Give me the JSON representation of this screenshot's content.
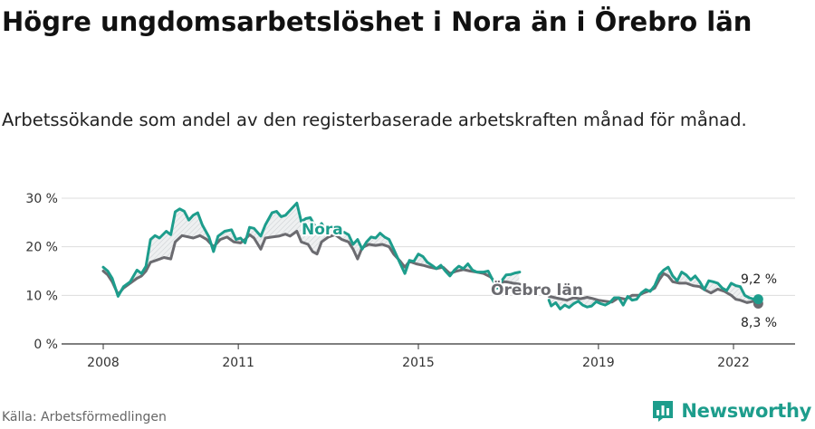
{
  "header": {
    "title": "Högre ungdomsarbetslöshet i Nora än i Örebro län",
    "subtitle": "Arbetssökande som andel av den registerbaserade arbetskraften månad för månad."
  },
  "footer": {
    "source": "Källa: Arbetsförmedlingen",
    "brand": "Newsworthy",
    "brand_icon": "bar-chart-logo-icon"
  },
  "chart_data": {
    "type": "line",
    "title": "Högre ungdomsarbetslöshet i Nora än i Örebro län",
    "subtitle": "Arbetssökande som andel av den registerbaserade arbetskraften månad för månad.",
    "ylim": [
      0,
      30
    ],
    "yticks": [
      0,
      10,
      20,
      30
    ],
    "ytick_labels": [
      "0 %",
      "10 %",
      "20 %",
      "30 %"
    ],
    "xlim": [
      2008.0,
      2023.0
    ],
    "xticks": [
      2008,
      2011,
      2015,
      2019,
      2022
    ],
    "xtick_labels": [
      "2008",
      "2011",
      "2015",
      "2019",
      "2022"
    ],
    "grid": true,
    "end_labels": [
      "9,2 %",
      "8,3 %"
    ],
    "series": [
      {
        "name": "Nora",
        "color": "#1d9d8c",
        "gap": [
          2017.25,
          2017.9
        ],
        "points": [
          [
            2008.0,
            15.8
          ],
          [
            2008.1,
            15.0
          ],
          [
            2008.2,
            13.5
          ],
          [
            2008.33,
            9.8
          ],
          [
            2008.45,
            11.8
          ],
          [
            2008.6,
            12.8
          ],
          [
            2008.75,
            15.2
          ],
          [
            2008.85,
            14.5
          ],
          [
            2008.95,
            16.0
          ],
          [
            2009.05,
            21.5
          ],
          [
            2009.15,
            22.3
          ],
          [
            2009.25,
            21.8
          ],
          [
            2009.4,
            23.2
          ],
          [
            2009.5,
            22.5
          ],
          [
            2009.6,
            27.2
          ],
          [
            2009.7,
            27.8
          ],
          [
            2009.8,
            27.3
          ],
          [
            2009.9,
            25.5
          ],
          [
            2010.0,
            26.5
          ],
          [
            2010.1,
            27.0
          ],
          [
            2010.2,
            24.5
          ],
          [
            2010.35,
            22.0
          ],
          [
            2010.45,
            19.0
          ],
          [
            2010.55,
            22.2
          ],
          [
            2010.7,
            23.2
          ],
          [
            2010.85,
            23.5
          ],
          [
            2010.95,
            21.5
          ],
          [
            2011.05,
            21.8
          ],
          [
            2011.15,
            20.8
          ],
          [
            2011.25,
            24.0
          ],
          [
            2011.35,
            23.8
          ],
          [
            2011.5,
            22.2
          ],
          [
            2011.6,
            24.5
          ],
          [
            2011.75,
            27.0
          ],
          [
            2011.85,
            27.3
          ],
          [
            2011.95,
            26.2
          ],
          [
            2012.05,
            26.5
          ],
          [
            2012.15,
            27.5
          ],
          [
            2012.3,
            29.0
          ],
          [
            2012.4,
            25.2
          ],
          [
            2012.5,
            25.8
          ],
          [
            2012.6,
            26.0
          ],
          [
            2012.75,
            23.5
          ],
          [
            2012.85,
            24.8
          ],
          [
            2012.95,
            23.2
          ],
          [
            2013.1,
            24.2
          ],
          [
            2013.2,
            22.8
          ],
          [
            2013.35,
            23.0
          ],
          [
            2013.45,
            22.5
          ],
          [
            2013.55,
            20.5
          ],
          [
            2013.65,
            21.5
          ],
          [
            2013.75,
            19.5
          ],
          [
            2013.85,
            21.0
          ],
          [
            2013.95,
            22.0
          ],
          [
            2014.05,
            21.8
          ],
          [
            2014.15,
            22.8
          ],
          [
            2014.25,
            22.0
          ],
          [
            2014.35,
            21.5
          ],
          [
            2014.45,
            19.5
          ],
          [
            2014.6,
            16.5
          ],
          [
            2014.7,
            14.5
          ],
          [
            2014.8,
            17.2
          ],
          [
            2014.9,
            17.0
          ],
          [
            2015.0,
            18.5
          ],
          [
            2015.1,
            18.0
          ],
          [
            2015.2,
            16.8
          ],
          [
            2015.3,
            16.2
          ],
          [
            2015.4,
            15.5
          ],
          [
            2015.5,
            16.2
          ],
          [
            2015.6,
            15.0
          ],
          [
            2015.7,
            14.0
          ],
          [
            2015.8,
            15.2
          ],
          [
            2015.9,
            16.0
          ],
          [
            2016.0,
            15.5
          ],
          [
            2016.1,
            16.5
          ],
          [
            2016.2,
            15.2
          ],
          [
            2016.3,
            14.8
          ],
          [
            2016.45,
            14.8
          ],
          [
            2016.55,
            15.0
          ],
          [
            2016.65,
            13.2
          ],
          [
            2016.75,
            11.5
          ],
          [
            2016.85,
            13.0
          ],
          [
            2016.95,
            14.2
          ],
          [
            2017.05,
            14.3
          ],
          [
            2017.15,
            14.6
          ],
          [
            2017.25,
            14.8
          ],
          [
            2017.9,
            9.0
          ],
          [
            2017.95,
            7.8
          ],
          [
            2018.05,
            8.5
          ],
          [
            2018.15,
            7.2
          ],
          [
            2018.25,
            8.0
          ],
          [
            2018.35,
            7.5
          ],
          [
            2018.45,
            8.3
          ],
          [
            2018.55,
            8.8
          ],
          [
            2018.65,
            8.0
          ],
          [
            2018.75,
            7.6
          ],
          [
            2018.85,
            7.8
          ],
          [
            2018.95,
            8.7
          ],
          [
            2019.05,
            8.3
          ],
          [
            2019.15,
            8.0
          ],
          [
            2019.25,
            8.5
          ],
          [
            2019.35,
            9.5
          ],
          [
            2019.45,
            9.5
          ],
          [
            2019.55,
            8.0
          ],
          [
            2019.65,
            9.8
          ],
          [
            2019.75,
            9.0
          ],
          [
            2019.85,
            9.2
          ],
          [
            2019.95,
            10.5
          ],
          [
            2020.05,
            11.2
          ],
          [
            2020.15,
            10.8
          ],
          [
            2020.25,
            12.0
          ],
          [
            2020.35,
            14.2
          ],
          [
            2020.45,
            15.2
          ],
          [
            2020.55,
            15.8
          ],
          [
            2020.65,
            14.0
          ],
          [
            2020.75,
            13.0
          ],
          [
            2020.85,
            14.8
          ],
          [
            2020.95,
            14.2
          ],
          [
            2021.05,
            13.2
          ],
          [
            2021.15,
            14.0
          ],
          [
            2021.25,
            12.8
          ],
          [
            2021.35,
            11.2
          ],
          [
            2021.45,
            13.0
          ],
          [
            2021.55,
            12.8
          ],
          [
            2021.65,
            12.5
          ],
          [
            2021.75,
            11.5
          ],
          [
            2021.85,
            11.0
          ],
          [
            2021.95,
            12.5
          ],
          [
            2022.05,
            12.0
          ],
          [
            2022.15,
            11.8
          ],
          [
            2022.25,
            10.0
          ],
          [
            2022.35,
            9.5
          ],
          [
            2022.45,
            9.2
          ],
          [
            2022.55,
            9.2
          ]
        ]
      },
      {
        "name": "Örebro län",
        "color": "#6b6b70",
        "gap": [
          2017.25,
          2017.9
        ],
        "points": [
          [
            2008.0,
            15.0
          ],
          [
            2008.1,
            14.2
          ],
          [
            2008.2,
            12.8
          ],
          [
            2008.33,
            10.2
          ],
          [
            2008.45,
            11.5
          ],
          [
            2008.6,
            12.5
          ],
          [
            2008.75,
            13.5
          ],
          [
            2008.85,
            14.0
          ],
          [
            2008.95,
            15.0
          ],
          [
            2009.05,
            16.8
          ],
          [
            2009.2,
            17.3
          ],
          [
            2009.35,
            17.8
          ],
          [
            2009.5,
            17.5
          ],
          [
            2009.6,
            21.0
          ],
          [
            2009.75,
            22.3
          ],
          [
            2009.9,
            22.0
          ],
          [
            2010.0,
            21.8
          ],
          [
            2010.15,
            22.3
          ],
          [
            2010.3,
            21.5
          ],
          [
            2010.45,
            20.0
          ],
          [
            2010.6,
            21.5
          ],
          [
            2010.75,
            22.0
          ],
          [
            2010.9,
            21.0
          ],
          [
            2011.05,
            20.8
          ],
          [
            2011.15,
            21.5
          ],
          [
            2011.25,
            22.5
          ],
          [
            2011.35,
            21.8
          ],
          [
            2011.5,
            19.5
          ],
          [
            2011.6,
            21.8
          ],
          [
            2011.75,
            22.0
          ],
          [
            2011.9,
            22.2
          ],
          [
            2012.05,
            22.6
          ],
          [
            2012.15,
            22.2
          ],
          [
            2012.3,
            23.2
          ],
          [
            2012.4,
            21.0
          ],
          [
            2012.55,
            20.5
          ],
          [
            2012.65,
            19.0
          ],
          [
            2012.75,
            18.5
          ],
          [
            2012.85,
            21.0
          ],
          [
            2013.0,
            22.0
          ],
          [
            2013.15,
            22.5
          ],
          [
            2013.3,
            21.5
          ],
          [
            2013.45,
            21.0
          ],
          [
            2013.55,
            19.5
          ],
          [
            2013.65,
            17.5
          ],
          [
            2013.75,
            19.8
          ],
          [
            2013.9,
            20.5
          ],
          [
            2014.05,
            20.3
          ],
          [
            2014.2,
            20.5
          ],
          [
            2014.35,
            20.0
          ],
          [
            2014.45,
            18.5
          ],
          [
            2014.6,
            17.0
          ],
          [
            2014.7,
            15.8
          ],
          [
            2014.8,
            17.0
          ],
          [
            2014.95,
            16.5
          ],
          [
            2015.1,
            16.2
          ],
          [
            2015.25,
            15.8
          ],
          [
            2015.4,
            15.5
          ],
          [
            2015.55,
            15.8
          ],
          [
            2015.7,
            14.5
          ],
          [
            2015.85,
            15.0
          ],
          [
            2016.0,
            15.3
          ],
          [
            2016.15,
            15.0
          ],
          [
            2016.3,
            14.8
          ],
          [
            2016.45,
            14.5
          ],
          [
            2016.6,
            13.8
          ],
          [
            2016.7,
            12.8
          ],
          [
            2016.8,
            12.5
          ],
          [
            2016.9,
            12.8
          ],
          [
            2017.0,
            12.7
          ],
          [
            2017.1,
            12.5
          ],
          [
            2017.25,
            12.3
          ],
          [
            2017.9,
            9.8
          ],
          [
            2018.1,
            9.4
          ],
          [
            2018.3,
            9.0
          ],
          [
            2018.45,
            9.5
          ],
          [
            2018.6,
            9.3
          ],
          [
            2018.75,
            9.6
          ],
          [
            2018.85,
            9.4
          ],
          [
            2019.0,
            9.0
          ],
          [
            2019.15,
            8.8
          ],
          [
            2019.3,
            8.6
          ],
          [
            2019.45,
            9.5
          ],
          [
            2019.6,
            9.2
          ],
          [
            2019.75,
            10.0
          ],
          [
            2019.9,
            10.0
          ],
          [
            2020.0,
            10.5
          ],
          [
            2020.15,
            11.0
          ],
          [
            2020.25,
            11.5
          ],
          [
            2020.35,
            13.2
          ],
          [
            2020.45,
            14.5
          ],
          [
            2020.55,
            14.0
          ],
          [
            2020.65,
            12.8
          ],
          [
            2020.8,
            12.5
          ],
          [
            2020.95,
            12.5
          ],
          [
            2021.1,
            12.0
          ],
          [
            2021.25,
            11.8
          ],
          [
            2021.35,
            11.2
          ],
          [
            2021.5,
            10.5
          ],
          [
            2021.65,
            11.3
          ],
          [
            2021.8,
            10.8
          ],
          [
            2021.95,
            10.0
          ],
          [
            2022.05,
            9.2
          ],
          [
            2022.15,
            9.0
          ],
          [
            2022.3,
            8.5
          ],
          [
            2022.45,
            8.8
          ],
          [
            2022.55,
            8.3
          ]
        ]
      }
    ]
  }
}
